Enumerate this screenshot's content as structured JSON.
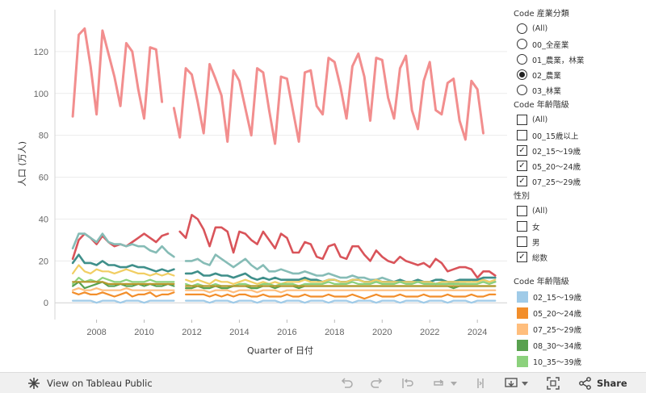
{
  "chart_data": {
    "type": "line",
    "xlabel": "Quarter of 日付",
    "ylabel": "人口 (万人)",
    "x_ticks": [
      "2008",
      "2010",
      "2012",
      "2014",
      "2016",
      "2018",
      "2020",
      "2022",
      "2024"
    ],
    "x_tick_values": [
      2008,
      2010,
      2012,
      2014,
      2016,
      2018,
      2020,
      2022,
      2024
    ],
    "y_ticks": [
      0,
      20,
      40,
      60,
      80,
      100,
      120
    ],
    "xlim": [
      2006.25,
      2025.25
    ],
    "ylim": [
      -8,
      140
    ],
    "gap_after": [
      2010.75
    ],
    "x_start": 2007.0,
    "x_step": 0.25,
    "series": [
      {
        "color": "#F28E8E",
        "width": 3,
        "values": [
          89,
          128,
          131,
          113,
          90,
          130,
          119,
          108,
          94,
          124,
          120,
          102,
          88,
          122,
          121,
          96,
          null,
          93,
          79,
          112,
          109,
          96,
          81,
          114,
          107,
          99,
          77,
          111,
          106,
          93,
          80,
          112,
          110,
          92,
          76,
          108,
          107,
          92,
          77,
          110,
          111,
          94,
          90,
          117,
          115,
          103,
          88,
          113,
          119,
          108,
          87,
          117,
          116,
          98,
          88,
          112,
          118,
          92,
          83,
          106,
          115,
          92,
          90,
          105,
          107,
          87,
          78,
          106,
          102,
          81
        ]
      },
      {
        "color": "#D9545A",
        "width": 2.6,
        "values": [
          21,
          30,
          33,
          31,
          28,
          32,
          29,
          27,
          28,
          27,
          29,
          31,
          33,
          31,
          29,
          32,
          33,
          null,
          34,
          31,
          42,
          40,
          35,
          27,
          36,
          36,
          34,
          24,
          34,
          33,
          30,
          28,
          34,
          30,
          26,
          33,
          31,
          24,
          24,
          29,
          28,
          22,
          21,
          27,
          28,
          22,
          21,
          27,
          27,
          23,
          20,
          25,
          22,
          20,
          19,
          22,
          20,
          19,
          18,
          19,
          17,
          21,
          19,
          15,
          16,
          17,
          17,
          16,
          12,
          15,
          15,
          13
        ]
      },
      {
        "color": "#86BCB6",
        "width": 2.6,
        "values": [
          26,
          33,
          33,
          31,
          29,
          33,
          29,
          28,
          28,
          27,
          28,
          27,
          27,
          25,
          24,
          27,
          24,
          22,
          null,
          20,
          20,
          21,
          19,
          18,
          23,
          21,
          19,
          17,
          19,
          21,
          18,
          16,
          18,
          15,
          15,
          16,
          15,
          14,
          14,
          15,
          14,
          13,
          13,
          14,
          13,
          12,
          12,
          13,
          12,
          12,
          11,
          11,
          12,
          11,
          10,
          11,
          10,
          10,
          11,
          10,
          10,
          9,
          10,
          10,
          9,
          10,
          10,
          11,
          10,
          11,
          10,
          10
        ]
      },
      {
        "color": "#3F8F8A",
        "width": 2.6,
        "values": [
          19,
          23,
          19,
          19,
          18,
          20,
          18,
          18,
          17,
          17,
          18,
          17,
          17,
          16,
          15,
          16,
          15,
          16,
          null,
          14,
          14,
          15,
          13,
          13,
          14,
          13,
          13,
          12,
          13,
          14,
          12,
          11,
          12,
          11,
          12,
          11,
          11,
          11,
          11,
          12,
          11,
          11,
          10,
          11,
          11,
          10,
          10,
          11,
          11,
          10,
          10,
          11,
          10,
          10,
          10,
          11,
          10,
          10,
          11,
          10,
          10,
          11,
          11,
          10,
          10,
          11,
          11,
          11,
          11,
          12,
          12,
          12
        ]
      },
      {
        "color": "#F1CE63",
        "width": 2.2,
        "values": [
          14,
          18,
          15,
          14,
          16,
          15,
          15,
          14,
          15,
          16,
          15,
          14,
          14,
          13,
          14,
          13,
          14,
          13,
          null,
          11,
          10,
          11,
          10,
          9,
          11,
          10,
          10,
          9,
          10,
          11,
          10,
          9,
          10,
          9,
          10,
          9,
          10,
          10,
          10,
          11,
          10,
          10,
          10,
          11,
          11,
          10,
          10,
          11,
          11,
          10,
          10,
          11,
          10,
          10,
          10,
          10,
          10,
          10,
          10,
          10,
          10,
          9,
          10,
          10,
          10,
          10,
          10,
          10,
          10,
          11,
          10,
          11
        ]
      },
      {
        "color": "#8CD17D",
        "width": 2.2,
        "values": [
          9,
          12,
          10,
          11,
          10,
          12,
          11,
          10,
          10,
          11,
          10,
          10,
          10,
          11,
          10,
          10,
          10,
          10,
          null,
          9,
          8,
          9,
          8,
          8,
          9,
          8,
          8,
          8,
          9,
          9,
          8,
          8,
          9,
          9,
          8,
          9,
          9,
          9,
          8,
          9,
          9,
          9,
          9,
          10,
          9,
          9,
          9,
          10,
          9,
          9,
          9,
          10,
          9,
          9,
          9,
          10,
          9,
          9,
          10,
          9,
          9,
          9,
          9,
          9,
          9,
          9,
          9,
          9,
          9,
          10,
          9,
          10
        ]
      },
      {
        "color": "#59A14F",
        "width": 2.2,
        "values": [
          8,
          10,
          7,
          8,
          9,
          10,
          8,
          8,
          9,
          8,
          8,
          9,
          8,
          9,
          8,
          8,
          9,
          8,
          null,
          7,
          7,
          8,
          7,
          7,
          8,
          7,
          7,
          8,
          8,
          8,
          7,
          7,
          8,
          8,
          7,
          8,
          8,
          8,
          7,
          8,
          8,
          8,
          8,
          8,
          8,
          8,
          8,
          8,
          8,
          8,
          8,
          8,
          8,
          8,
          8,
          8,
          8,
          8,
          8,
          8,
          8,
          8,
          8,
          8,
          7,
          8,
          8,
          8,
          8,
          8,
          8,
          8
        ]
      },
      {
        "color": "#B6992D",
        "width": 2.2,
        "values": [
          10,
          10,
          10,
          10,
          10,
          10,
          9,
          9,
          9,
          9,
          9,
          9,
          9,
          9,
          9,
          9,
          9,
          9,
          null,
          8,
          8,
          8,
          8,
          8,
          8,
          8,
          8,
          8,
          8,
          8,
          8,
          8,
          8,
          8,
          8,
          8,
          8,
          8,
          8,
          8,
          8,
          8,
          8,
          8,
          8,
          8,
          8,
          8,
          8,
          8,
          8,
          8,
          8,
          8,
          8,
          8,
          8,
          8,
          8,
          8,
          8,
          8,
          8,
          8,
          8,
          8,
          8,
          8,
          8,
          8,
          8,
          8
        ]
      },
      {
        "color": "#FFBE7D",
        "width": 2.2,
        "values": [
          6,
          7,
          6,
          6,
          7,
          6,
          6,
          6,
          6,
          7,
          6,
          6,
          6,
          6,
          6,
          6,
          6,
          6,
          null,
          6,
          6,
          6,
          6,
          5,
          6,
          6,
          6,
          5,
          6,
          6,
          6,
          5,
          6,
          6,
          6,
          5,
          6,
          6,
          6,
          6,
          6,
          6,
          6,
          6,
          6,
          6,
          6,
          6,
          6,
          6,
          6,
          6,
          6,
          6,
          6,
          6,
          6,
          6,
          6,
          6,
          6,
          6,
          6,
          6,
          6,
          6,
          6,
          6,
          6,
          6,
          6,
          6
        ]
      },
      {
        "color": "#F28E2B",
        "width": 2.2,
        "values": [
          5,
          4,
          5,
          4,
          4,
          5,
          4,
          3,
          4,
          5,
          3,
          4,
          4,
          5,
          3,
          4,
          4,
          5,
          null,
          4,
          4,
          4,
          4,
          3,
          4,
          3,
          4,
          3,
          4,
          4,
          3,
          3,
          4,
          3,
          3,
          3,
          4,
          3,
          3,
          4,
          3,
          3,
          3,
          4,
          3,
          3,
          3,
          4,
          3,
          2,
          3,
          4,
          3,
          3,
          3,
          4,
          3,
          3,
          3,
          4,
          3,
          3,
          3,
          4,
          3,
          3,
          3,
          4,
          3,
          3,
          4,
          4
        ]
      },
      {
        "color": "#A0CBE8",
        "width": 2.2,
        "values": [
          1,
          1,
          1,
          1,
          0,
          1,
          1,
          1,
          0,
          1,
          1,
          1,
          0,
          1,
          1,
          1,
          1,
          1,
          null,
          1,
          1,
          1,
          1,
          0,
          1,
          1,
          1,
          0,
          1,
          1,
          1,
          0,
          1,
          1,
          1,
          0,
          1,
          1,
          1,
          0,
          1,
          1,
          1,
          0,
          1,
          1,
          1,
          0,
          1,
          1,
          1,
          0,
          1,
          1,
          1,
          0,
          1,
          1,
          1,
          0,
          1,
          1,
          1,
          0,
          1,
          1,
          1,
          0,
          1,
          1,
          1,
          1
        ]
      }
    ]
  },
  "filters": {
    "industry": {
      "title": "Code 産業分類",
      "options": [
        {
          "label": "(All)",
          "selected": false
        },
        {
          "label": "00_全産業",
          "selected": false
        },
        {
          "label": "01_農業，林業",
          "selected": false
        },
        {
          "label": "02_農業",
          "selected": true
        },
        {
          "label": "03_林業",
          "selected": false
        }
      ]
    },
    "age": {
      "title": "Code 年齢階級",
      "options": [
        {
          "label": "(All)",
          "checked": false
        },
        {
          "label": "00_15歳以上",
          "checked": false
        },
        {
          "label": "02_15～19歳",
          "checked": true
        },
        {
          "label": "05_20～24歳",
          "checked": true
        },
        {
          "label": "07_25～29歳",
          "checked": true
        }
      ]
    },
    "sex": {
      "title": "性別",
      "options": [
        {
          "label": "(All)",
          "checked": false
        },
        {
          "label": "女",
          "checked": false
        },
        {
          "label": "男",
          "checked": false
        },
        {
          "label": "総数",
          "checked": true
        }
      ]
    }
  },
  "legend": {
    "title": "Code 年齢階級",
    "items": [
      {
        "label": "02_15～19歳",
        "color": "#A0CBE8"
      },
      {
        "label": "05_20～24歳",
        "color": "#F28E2B"
      },
      {
        "label": "07_25～29歳",
        "color": "#FFBE7D"
      },
      {
        "label": "08_30～34歳",
        "color": "#59A14F"
      },
      {
        "label": "10_35～39歳",
        "color": "#8CD17D"
      }
    ]
  },
  "toolbar": {
    "view_label": "View on Tableau Public",
    "share_label": "Share"
  }
}
